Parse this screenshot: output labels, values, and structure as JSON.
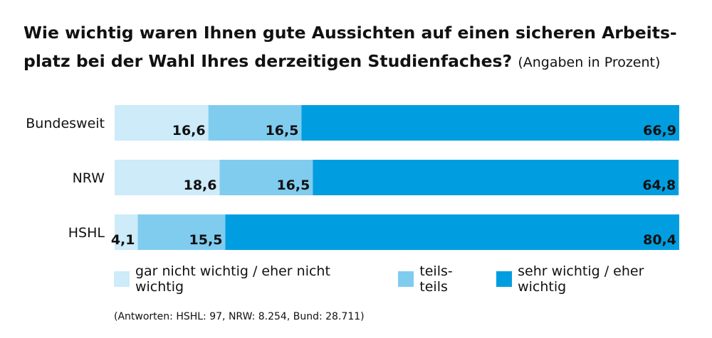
{
  "title": {
    "line1": "Wie wichtig waren Ihnen gute Aussichten auf einen sicheren Arbeits-",
    "line2": "platz bei der Wahl Ihres derzeitigen Studienfaches?",
    "suffix": "(Angaben in Prozent)"
  },
  "chart_data": {
    "type": "bar",
    "orientation": "horizontal",
    "stacked": true,
    "categories": [
      "Bundesweit",
      "NRW",
      "HSHL"
    ],
    "series": [
      {
        "name": "gar nicht wichtig / eher nicht wichtig",
        "values": [
          16.6,
          18.6,
          4.1
        ],
        "labels": [
          "16,6",
          "18,6",
          "4,1"
        ],
        "color": "#cdebf8"
      },
      {
        "name": "teils-teils",
        "values": [
          16.5,
          16.5,
          15.5
        ],
        "labels": [
          "16,5",
          "16,5",
          "15,5"
        ],
        "color": "#80ccef"
      },
      {
        "name": "sehr wichtig / eher wichtig",
        "values": [
          66.9,
          64.8,
          80.4
        ],
        "labels": [
          "66,9",
          "64,8",
          "80,4"
        ],
        "color": "#009ee0"
      }
    ],
    "xlim": [
      0,
      100
    ],
    "grid": false,
    "legend": "bottom"
  },
  "footnote": "(Antworten: HSHL: 97, NRW: 8.254, Bund: 28.711)"
}
